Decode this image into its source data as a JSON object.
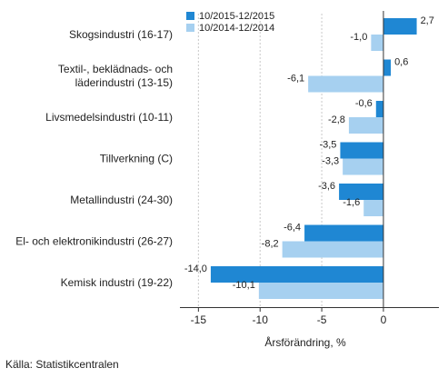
{
  "chart_data": {
    "type": "bar",
    "orientation": "horizontal",
    "categories": [
      "Skogsindustri (16-17)",
      "Textil-, beklädnads- och läderindustri (13-15)",
      "Livsmedelsindustri (10-11)",
      "Tillverkning (C)",
      "Metallindustri (24-30)",
      "El- och elektronikindustri (26-27)",
      "Kemisk industri (19-22)"
    ],
    "category_lines": [
      [
        "Skogsindustri (16-17)"
      ],
      [
        "Textil-, beklädnads- och",
        "läderindustri (13-15)"
      ],
      [
        "Livsmedelsindustri (10-11)"
      ],
      [
        "Tillverkning (C)"
      ],
      [
        "Metallindustri (24-30)"
      ],
      [
        "El- och elektronikindustri (26-27)"
      ],
      [
        "Kemisk industri (19-22)"
      ]
    ],
    "series": [
      {
        "name": "10/2015-12/2015",
        "color": "#1f87d3",
        "values": [
          2.7,
          0.6,
          -0.6,
          -3.5,
          -3.6,
          -6.4,
          -14.0
        ],
        "labels": [
          "2,7",
          "0,6",
          "-0,6",
          "-3,5",
          "-3,6",
          "-6,4",
          "-14,0"
        ]
      },
      {
        "name": "10/2014-12/2014",
        "color": "#a6d0f0",
        "values": [
          -1.0,
          -6.1,
          -2.8,
          -3.3,
          -1.6,
          -8.2,
          -10.1
        ],
        "labels": [
          "-1,0",
          "-6,1",
          "-2,8",
          "-3,3",
          "-1,6",
          "-8,2",
          "-10,1"
        ]
      }
    ],
    "xlim": [
      -16.5,
      4.5
    ],
    "xticks": [
      -15,
      -10,
      -5,
      0
    ],
    "xtick_labels": [
      "-15",
      "-10",
      "-5",
      "0"
    ],
    "xlabel": "Årsförändring, %",
    "legend_position": "top",
    "grid": "vertical"
  },
  "source": "Källa: Statistikcentralen"
}
